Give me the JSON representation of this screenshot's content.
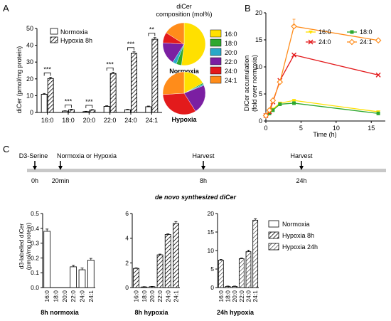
{
  "panel_labels": {
    "a": "A",
    "b": "B",
    "c": "C"
  },
  "colors": {
    "16:0": "#FFE000",
    "18:0": "#2EA82E",
    "20:0": "#29A8C8",
    "22:0": "#7B1FA2",
    "24:0": "#E31A1C",
    "24:1": "#FF8C1A"
  },
  "pie": {
    "title_line1": "diCer",
    "title_line2": "composition (mol%)",
    "normoxia_label": "Normoxia",
    "hypoxia_label": "Hypoxia",
    "legend": [
      "16:0",
      "18:0",
      "20:0",
      "22:0",
      "24:0",
      "24:1"
    ]
  },
  "timeline": {
    "labels": [
      "D3-Serine",
      "Normoxia or Hypoxia",
      "Harvest",
      "Harvest"
    ],
    "times": [
      "0h",
      "20min",
      "8h",
      "24h"
    ]
  },
  "section_c_title": "de novo synthesized diCer",
  "chart_data": [
    {
      "type": "bar",
      "panel": "A",
      "categories": [
        "16:0",
        "18:0",
        "20:0",
        "22:0",
        "24:0",
        "24:1"
      ],
      "series": [
        {
          "name": "Normoxia",
          "values": [
            10.8,
            0.8,
            0.5,
            3.6,
            1.6,
            3.4
          ],
          "errors": [
            0.5,
            0.2,
            0.2,
            0.4,
            0.3,
            0.4
          ]
        },
        {
          "name": "Hypoxia 8h",
          "values": [
            20.2,
            1.6,
            1.4,
            23.2,
            35.2,
            43.6
          ],
          "errors": [
            0.8,
            0.3,
            0.3,
            0.8,
            0.9,
            1.0
          ]
        }
      ],
      "significance": [
        "***",
        "***",
        "***",
        "***",
        "***",
        "**"
      ],
      "ylabel": "diCer (pmol/mg protein)",
      "ylim": [
        0,
        50
      ],
      "yticks": [
        0,
        10,
        20,
        30,
        40,
        50
      ]
    },
    {
      "type": "pie",
      "panel": "A",
      "name": "Normoxia",
      "labels": [
        "16:0",
        "18:0",
        "20:0",
        "22:0",
        "24:0",
        "24:1"
      ],
      "values": [
        52,
        4,
        3,
        17,
        8,
        16
      ]
    },
    {
      "type": "pie",
      "panel": "A",
      "name": "Hypoxia",
      "labels": [
        "16:0",
        "18:0",
        "20:0",
        "22:0",
        "24:0",
        "24:1"
      ],
      "values": [
        17,
        1,
        1,
        22,
        33,
        26
      ]
    },
    {
      "type": "line",
      "panel": "B",
      "x": [
        0,
        0.5,
        1,
        2,
        4,
        16
      ],
      "series": [
        {
          "name": "16:0",
          "values": [
            1,
            1.5,
            2.2,
            3.3,
            3.8,
            1.7
          ]
        },
        {
          "name": "18:0",
          "values": [
            1,
            1.4,
            2.0,
            3.1,
            3.3,
            1.4
          ]
        },
        {
          "name": "24:0",
          "values": [
            1,
            1.7,
            3.5,
            7.5,
            12.2,
            8.5
          ]
        },
        {
          "name": "24:1",
          "values": [
            1,
            2.0,
            3.8,
            7.2,
            17.5,
            14.9
          ]
        }
      ],
      "xlabel": "Time (h)",
      "ylabel": "DiCer accumulation (fold over normoxia)",
      "xlim": [
        0,
        17
      ],
      "ylim": [
        0,
        20
      ],
      "xticks": [
        0,
        5,
        10,
        15
      ],
      "yticks": [
        0,
        5,
        10,
        15,
        20
      ]
    },
    {
      "type": "bar",
      "panel": "C",
      "name": "8h normoxia",
      "categories": [
        "16:0",
        "18:0",
        "20:0",
        "22:0",
        "24:0",
        "24:1"
      ],
      "values": [
        0.38,
        0,
        0,
        0.14,
        0.12,
        0.185
      ],
      "errors": [
        0.015,
        0,
        0,
        0.01,
        0.012,
        0.012
      ],
      "ylabel": "d3-labelled diCer (pmol/mg protein)",
      "ylim": [
        0,
        0.5
      ],
      "yticks": [
        0.0,
        0.1,
        0.2,
        0.3,
        0.4,
        0.5
      ]
    },
    {
      "type": "bar",
      "panel": "C",
      "name": "8h hypoxia",
      "categories": [
        "16:0",
        "18:0",
        "20:0",
        "22:0",
        "24:0",
        "24:1"
      ],
      "values": [
        1.55,
        0.05,
        0.07,
        2.65,
        4.3,
        5.2
      ],
      "errors": [
        0.05,
        0.02,
        0.02,
        0.06,
        0.05,
        0.15
      ],
      "ylim": [
        0,
        6
      ],
      "yticks": [
        0,
        2,
        4,
        6
      ]
    },
    {
      "type": "bar",
      "panel": "C",
      "name": "24h hypoxia",
      "categories": [
        "16:0",
        "18:0",
        "20:0",
        "22:0",
        "24:0",
        "24:1"
      ],
      "values": [
        7.4,
        0.3,
        0.3,
        7.8,
        9.7,
        18.2
      ],
      "errors": [
        0.2,
        0.1,
        0.1,
        0.2,
        0.4,
        0.4
      ],
      "legend": [
        "Normoxia",
        "Hypoxia 8h",
        "Hypoxia 24h"
      ],
      "ylim": [
        0,
        20
      ],
      "yticks": [
        0,
        5,
        10,
        15,
        20
      ]
    }
  ]
}
